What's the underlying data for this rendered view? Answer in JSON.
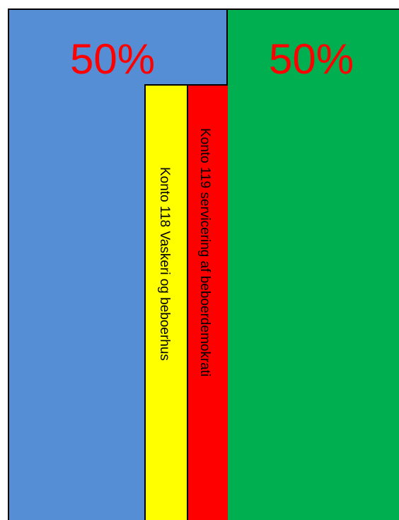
{
  "colors": {
    "left_block": "#558ed5",
    "right_block": "#00b050",
    "yellow_bar": "#ffff00",
    "red_bar": "#ff0000",
    "percent_text": "#ff0000"
  },
  "left": {
    "percent": "50%"
  },
  "right": {
    "percent": "50%"
  },
  "bars": {
    "konto_118": "Konto 118 Vaskeri og beboerhus",
    "konto_119": "Konto 119 servicering af beboerdemokrati"
  }
}
